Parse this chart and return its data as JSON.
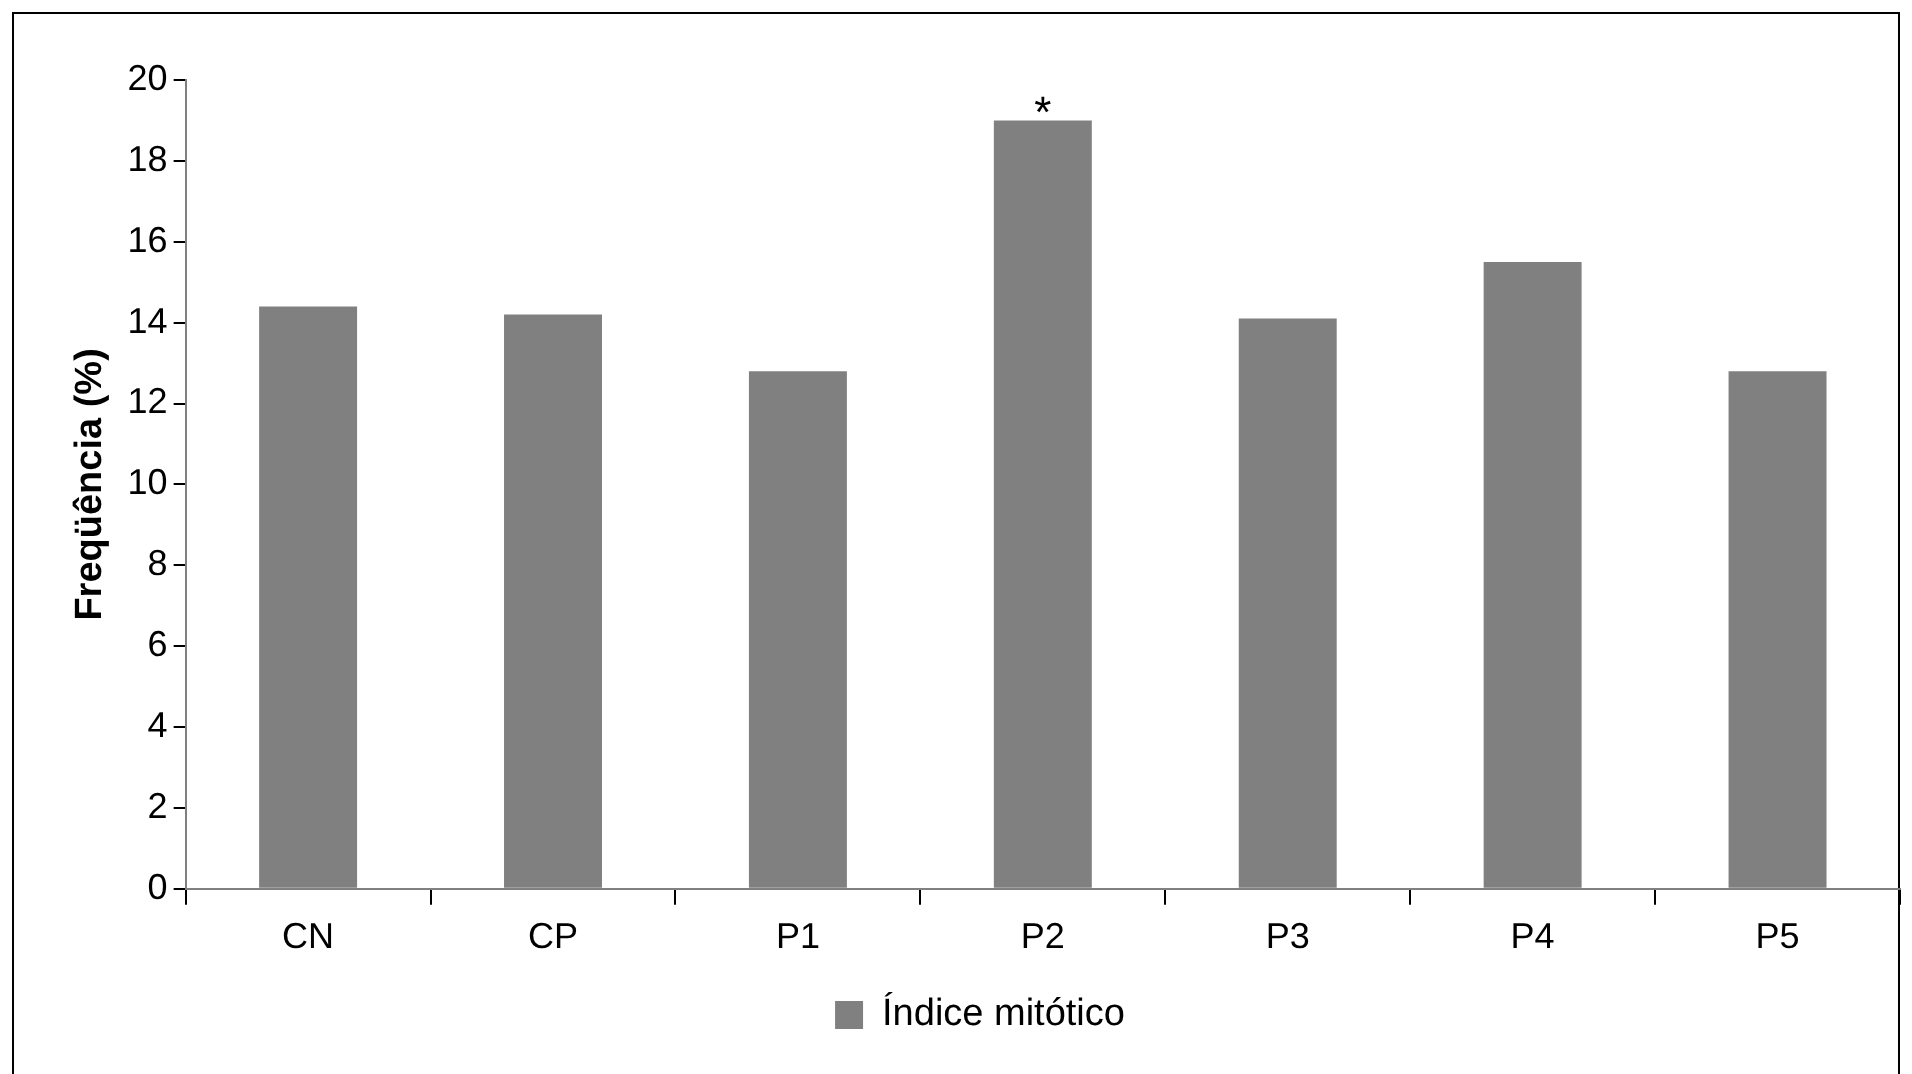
{
  "chart_data": {
    "type": "bar",
    "ylabel": "Freqüência (%)",
    "categories": [
      "CN",
      "CP",
      "P1",
      "P2",
      "P3",
      "P4",
      "P5"
    ],
    "series": [
      {
        "name": "Índice mitótico",
        "color": "#808080",
        "values": [
          14.4,
          14.2,
          12.8,
          19.0,
          14.1,
          15.5,
          12.8
        ]
      }
    ],
    "ylim": [
      0,
      20
    ],
    "yticks": [
      0,
      2,
      4,
      6,
      8,
      10,
      12,
      14,
      16,
      18,
      20
    ],
    "grid": false,
    "legend": "bottom",
    "annotations": [
      {
        "text": "*",
        "x": "P2",
        "y": 19.0
      }
    ]
  }
}
